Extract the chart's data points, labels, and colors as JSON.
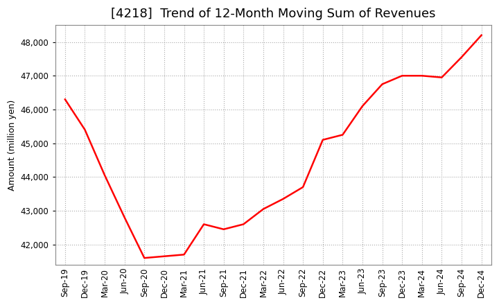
{
  "title": "[4218]  Trend of 12-Month Moving Sum of Revenues",
  "ylabel": "Amount (million yen)",
  "line_color": "#FF0000",
  "line_width": 1.8,
  "background_color": "#FFFFFF",
  "grid_color": "#AAAAAA",
  "x_labels": [
    "Sep-19",
    "Dec-19",
    "Mar-20",
    "Jun-20",
    "Sep-20",
    "Dec-20",
    "Mar-21",
    "Jun-21",
    "Sep-21",
    "Dec-21",
    "Mar-22",
    "Jun-22",
    "Sep-22",
    "Dec-22",
    "Mar-23",
    "Jun-23",
    "Sep-23",
    "Dec-23",
    "Mar-24",
    "Jun-24",
    "Sep-24",
    "Dec-24"
  ],
  "values": [
    46300,
    45400,
    44050,
    42800,
    41600,
    41650,
    41700,
    42600,
    42450,
    42600,
    43050,
    43350,
    43700,
    45100,
    45250,
    46100,
    46750,
    47000,
    47000,
    46950,
    47550,
    48200
  ],
  "ylim": [
    41400,
    48500
  ],
  "yticks": [
    42000,
    43000,
    44000,
    45000,
    46000,
    47000,
    48000
  ],
  "title_fontsize": 13,
  "label_fontsize": 9,
  "tick_fontsize": 8.5
}
